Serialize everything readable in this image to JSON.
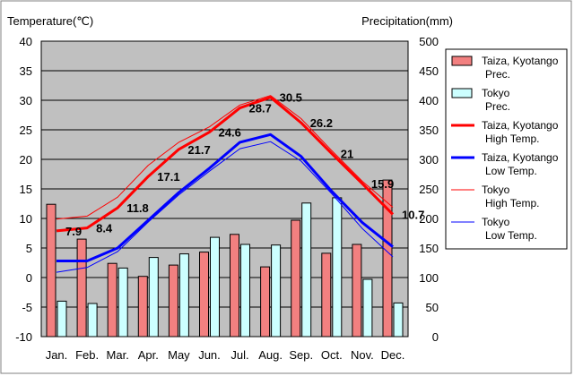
{
  "chart_data": {
    "type": "bar+line",
    "title_left": "Temperature(℃)",
    "title_right": "Precipitation(mm)",
    "categories": [
      "Jan.",
      "Feb.",
      "Mar.",
      "Apr.",
      "May",
      "Jun.",
      "Jul.",
      "Aug.",
      "Sep.",
      "Oct.",
      "Nov.",
      "Dec."
    ],
    "y_left": {
      "min": -10,
      "max": 40,
      "step": 5
    },
    "y_right": {
      "min": 0,
      "max": 500,
      "step": 50
    },
    "grid": true,
    "legend_position": "right",
    "series": [
      {
        "name": "Taiza, Kyotango Prec.",
        "legend_lines": [
          "Taiza, Kyotango",
          "Prec."
        ],
        "kind": "bar",
        "axis": "right",
        "color": "#f28080",
        "values": [
          224,
          165,
          124,
          102,
          121,
          143,
          173,
          118,
          197,
          141,
          156,
          265
        ]
      },
      {
        "name": "Tokyo Prec.",
        "legend_lines": [
          "Tokyo",
          "Prec."
        ],
        "kind": "bar",
        "axis": "right",
        "color": "#ccffff",
        "values": [
          60,
          56,
          116,
          134,
          140,
          168,
          156,
          155,
          226,
          235,
          97,
          57
        ]
      },
      {
        "name": "Taiza, Kyotango High Temp.",
        "legend_lines": [
          "Taiza, Kyotango",
          "High Temp."
        ],
        "kind": "line",
        "axis": "left",
        "color": "#ff0000",
        "width": 3,
        "values": [
          7.9,
          8.4,
          11.8,
          17.1,
          21.7,
          24.6,
          28.7,
          30.5,
          26.2,
          21,
          15.9,
          10.7
        ],
        "labels": [
          "7.9",
          "8.4",
          "11.8",
          "17.1",
          "21.7",
          "24.6",
          "28.7",
          "30.5",
          "26.2",
          "21",
          "15.9",
          "10.7"
        ]
      },
      {
        "name": "Taiza, Kyotango Low Temp.",
        "legend_lines": [
          "Taiza, Kyotango",
          "Low Temp."
        ],
        "kind": "line",
        "axis": "left",
        "color": "#0000ff",
        "width": 3,
        "values": [
          2.8,
          2.8,
          5.0,
          9.7,
          14.4,
          18.5,
          22.9,
          24.2,
          20.5,
          14.6,
          9.3,
          5.2
        ]
      },
      {
        "name": "Tokyo High Temp.",
        "legend_lines": [
          "Tokyo",
          "High Temp."
        ],
        "kind": "line",
        "axis": "left",
        "color": "#ff0000",
        "width": 1,
        "values": [
          9.9,
          10.4,
          13.6,
          19.0,
          22.9,
          25.5,
          29.2,
          30.8,
          26.9,
          21.5,
          16.3,
          11.9
        ]
      },
      {
        "name": "Tokyo Low Temp.",
        "legend_lines": [
          "Tokyo",
          "Low Temp."
        ],
        "kind": "line",
        "axis": "left",
        "color": "#0000ff",
        "width": 1,
        "values": [
          0.9,
          1.7,
          4.4,
          9.4,
          14.0,
          18.0,
          21.8,
          23.0,
          19.7,
          14.2,
          8.3,
          3.5
        ]
      }
    ]
  }
}
